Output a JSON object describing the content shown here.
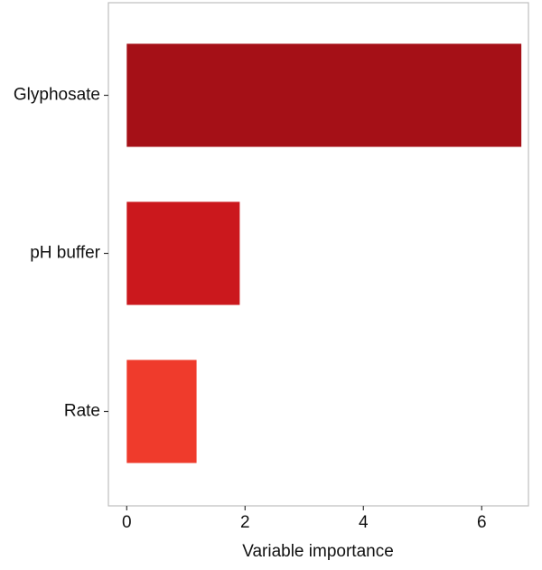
{
  "chart_data": {
    "type": "barh",
    "categories": [
      "Glyphosate",
      "pH buffer",
      "Rate"
    ],
    "values": [
      6.67,
      1.91,
      1.18
    ],
    "colors": [
      "#a51017",
      "#cb181d",
      "#ef3b2c"
    ],
    "x_label": "Variable importance",
    "xlim": [
      -0.31,
      6.79
    ],
    "xticks": [
      0,
      2,
      4,
      6
    ]
  }
}
